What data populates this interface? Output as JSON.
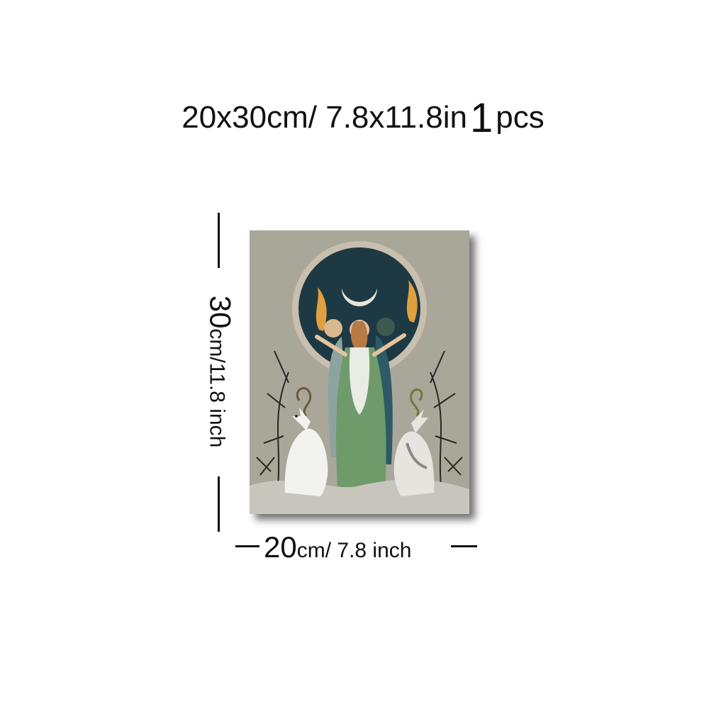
{
  "header": {
    "size_text": "20x30cm/ 7.8x11.8in",
    "quantity_number": "1",
    "quantity_unit": "pcs"
  },
  "height_dimension": {
    "value": "30",
    "unit_text": "cm/11.8 inch"
  },
  "width_dimension": {
    "value": "20",
    "unit_text": "cm/ 7.8 inch"
  },
  "poster": {
    "background_color": "#a9a79a",
    "moon_disc_color": "#1d3a44",
    "robe_color": "#6f9a6a"
  }
}
